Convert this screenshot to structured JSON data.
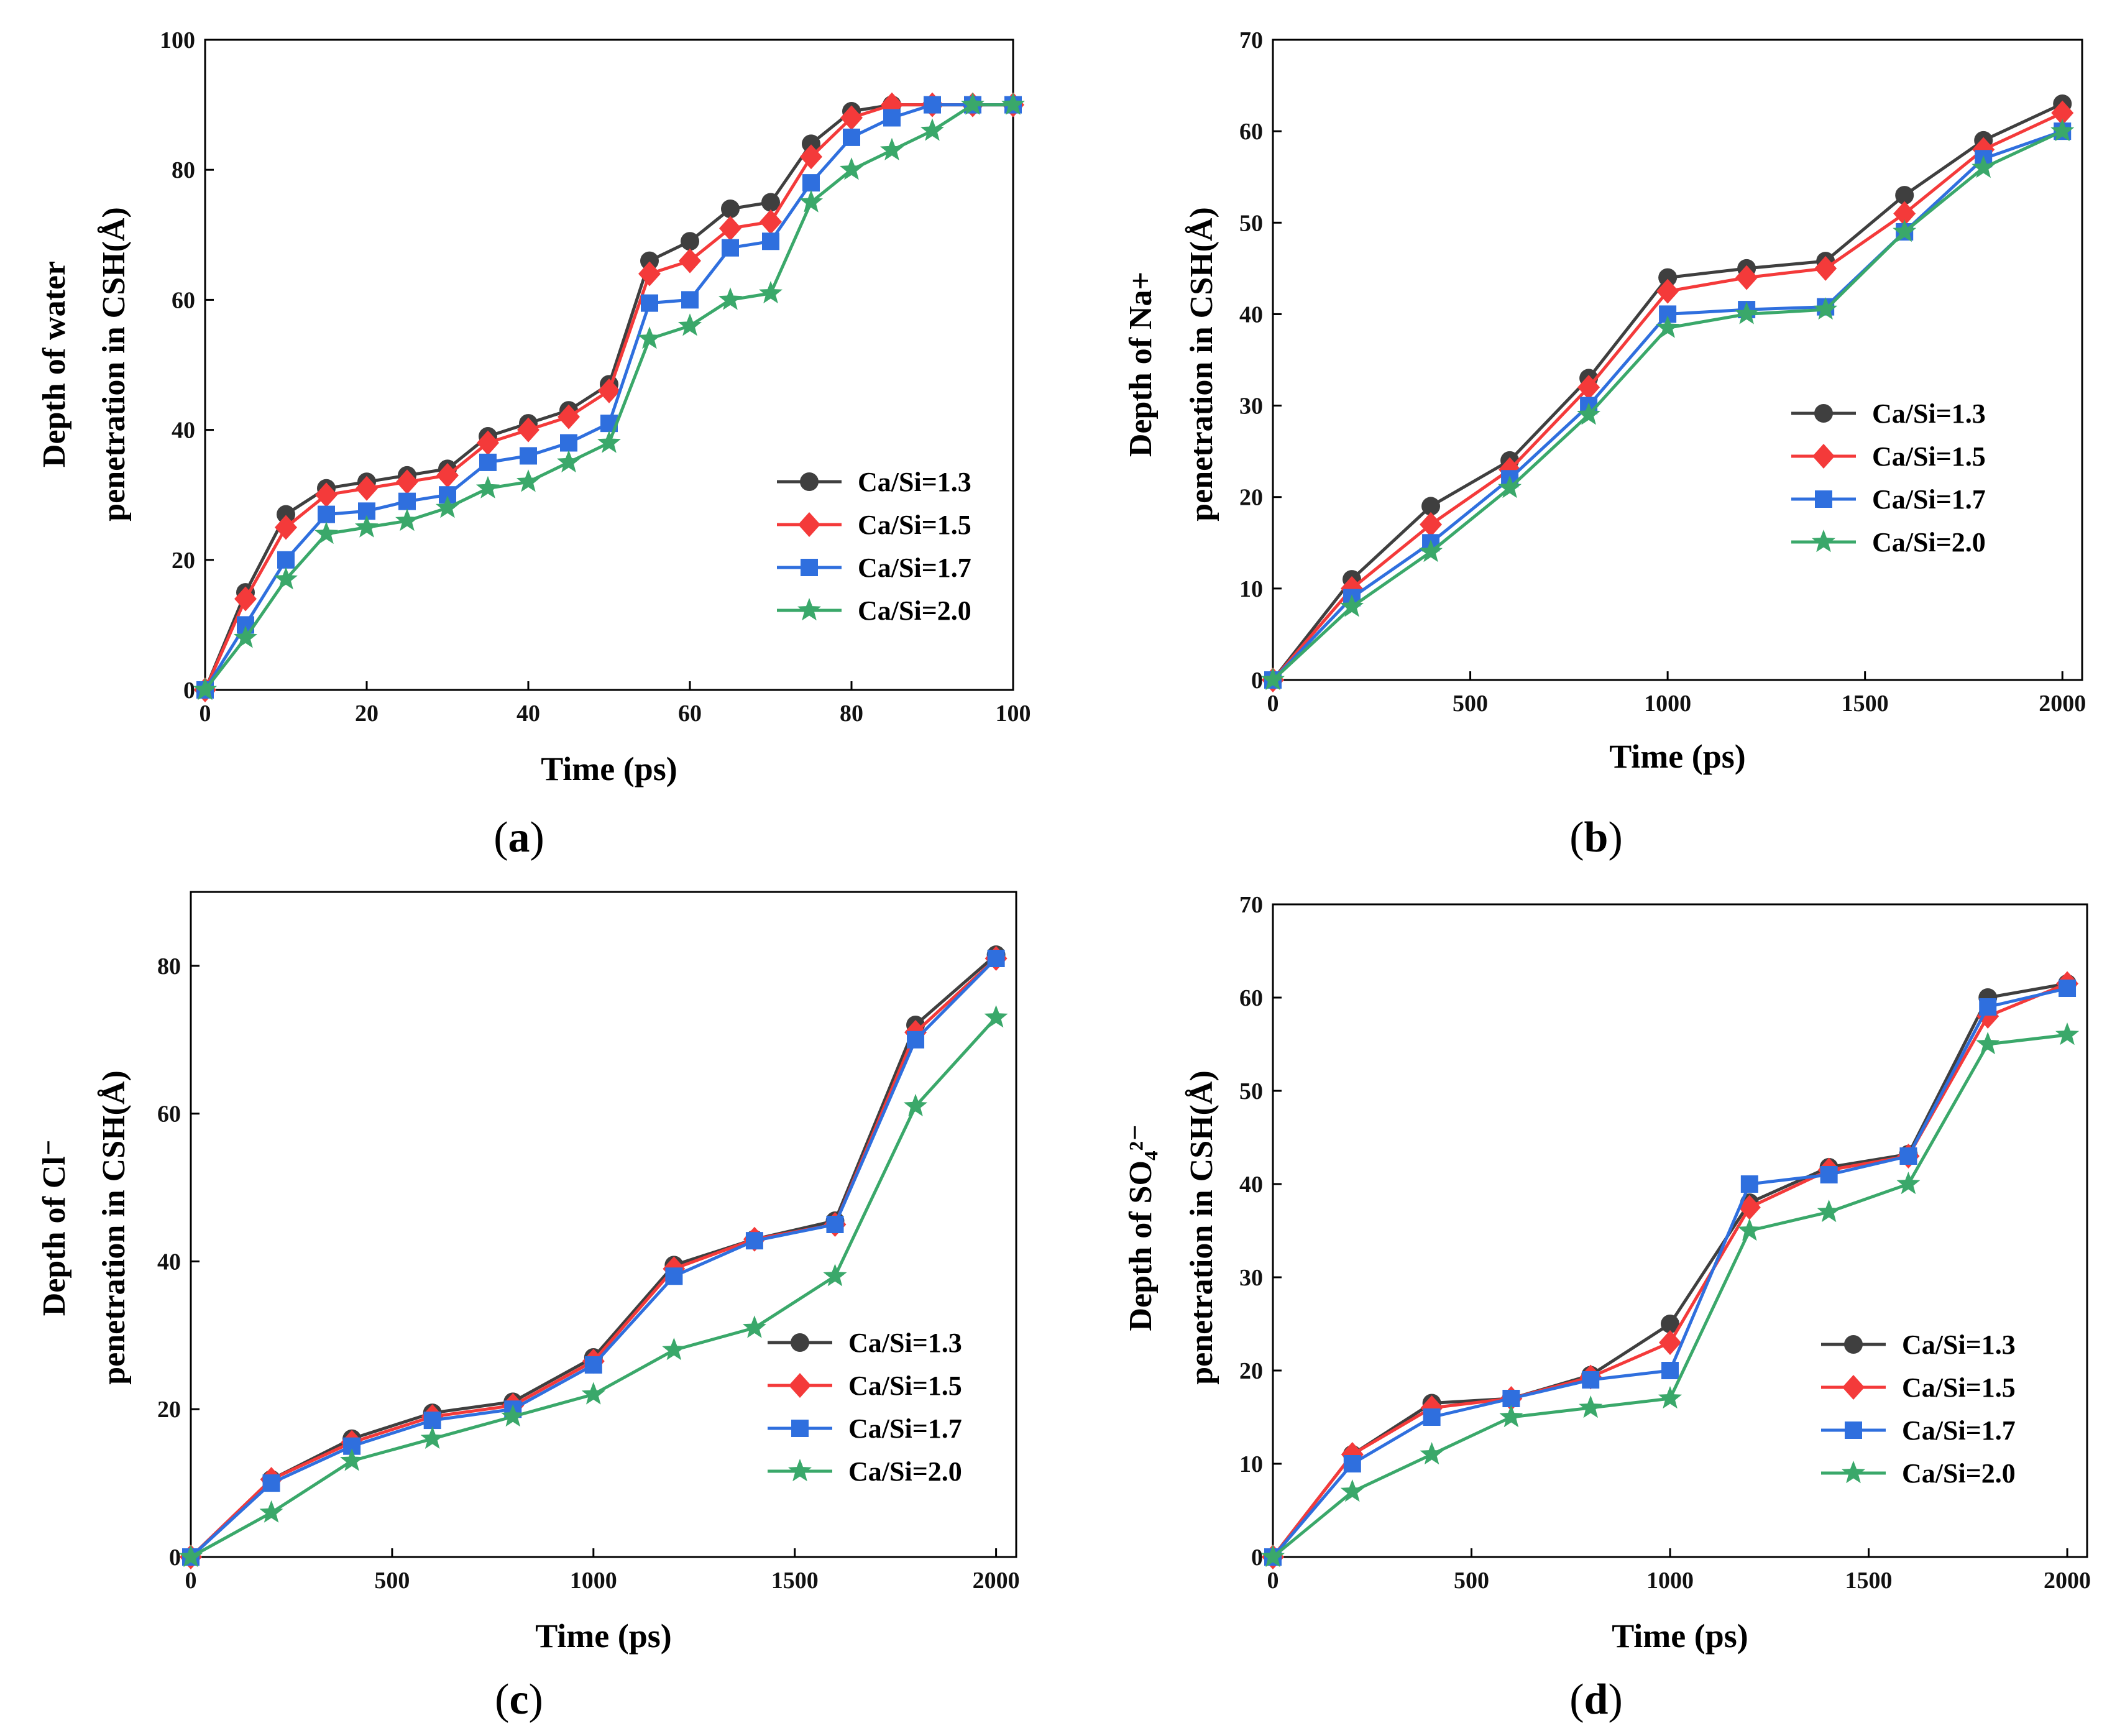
{
  "figure": {
    "series_colors": [
      "#3f3f3f",
      "#f43a3a",
      "#2f6fde",
      "#3aa86a"
    ]
  },
  "chart_data": [
    {
      "id": "a",
      "panel_label": "a",
      "type": "line",
      "title": "",
      "xlabel": "Time (ps)",
      "ylabel_line1": "Depth of water",
      "ylabel_line2": "penetration in CSH(Å)",
      "xlim": [
        0,
        100
      ],
      "ylim": [
        0,
        100
      ],
      "xticks": [
        0,
        20,
        40,
        60,
        80,
        100
      ],
      "yticks": [
        0,
        20,
        40,
        60,
        80,
        100
      ],
      "legend_position": "lower-right",
      "x": [
        0,
        5,
        10,
        15,
        20,
        25,
        30,
        35,
        40,
        45,
        50,
        55,
        60,
        65,
        70,
        75,
        80,
        85,
        90,
        95,
        100
      ],
      "series": [
        {
          "name": "Ca/Si=1.3",
          "marker": "circle",
          "values": [
            0,
            15,
            27,
            31,
            32,
            33,
            34,
            39,
            41,
            43,
            47,
            66,
            69,
            74,
            75,
            84,
            89,
            90,
            90,
            90,
            90
          ]
        },
        {
          "name": "Ca/Si=1.5",
          "marker": "diamond",
          "values": [
            0,
            14,
            25,
            30,
            31,
            32,
            33,
            38,
            40,
            42,
            46,
            64,
            66,
            71,
            72,
            82,
            88,
            90,
            90,
            90,
            90
          ]
        },
        {
          "name": "Ca/Si=1.7",
          "marker": "square",
          "values": [
            0,
            10,
            20,
            27,
            27.5,
            29,
            30,
            35,
            36,
            38,
            41,
            59.5,
            60,
            68,
            69,
            78,
            85,
            88,
            90,
            90,
            90
          ]
        },
        {
          "name": "Ca/Si=2.0",
          "marker": "star",
          "values": [
            0,
            8,
            17,
            24,
            25,
            26,
            28,
            31,
            32,
            35,
            38,
            54,
            56,
            60,
            61,
            75,
            80,
            83,
            86,
            90,
            90
          ]
        }
      ]
    },
    {
      "id": "b",
      "panel_label": "b",
      "type": "line",
      "title": "",
      "xlabel": "Time (ps)",
      "ylabel_line1": "Depth of Na+",
      "ylabel_line2": "penetration in CSH(Å)",
      "xlim": [
        0,
        2050
      ],
      "ylim": [
        0,
        70
      ],
      "xticks": [
        0,
        500,
        1000,
        1500,
        2000
      ],
      "yticks": [
        0,
        10,
        20,
        30,
        40,
        50,
        60,
        70
      ],
      "legend_position": "center-right",
      "x": [
        0,
        200,
        400,
        600,
        800,
        1000,
        1200,
        1400,
        1600,
        1800,
        2000
      ],
      "series": [
        {
          "name": "Ca/Si=1.3",
          "marker": "circle",
          "values": [
            0,
            11,
            19,
            24,
            33,
            44,
            45,
            45.8,
            53,
            59,
            63
          ]
        },
        {
          "name": "Ca/Si=1.5",
          "marker": "diamond",
          "values": [
            0,
            10,
            17,
            23,
            32,
            42.5,
            44,
            45,
            51,
            58,
            62
          ]
        },
        {
          "name": "Ca/Si=1.7",
          "marker": "square",
          "values": [
            0,
            9,
            15,
            22,
            30,
            40,
            40.5,
            40.8,
            49,
            57,
            60
          ]
        },
        {
          "name": "Ca/Si=2.0",
          "marker": "star",
          "values": [
            0,
            8,
            14,
            21,
            29,
            38.5,
            40,
            40.5,
            49,
            56,
            60
          ]
        }
      ]
    },
    {
      "id": "c",
      "panel_label": "c",
      "type": "line",
      "title": "",
      "xlabel": "Time (ps)",
      "ylabel_line1": "Depth of Cl⁻",
      "ylabel_line2": "penetration in CSH(Å)",
      "xlim": [
        0,
        2050
      ],
      "ylim": [
        0,
        90
      ],
      "xticks": [
        0,
        500,
        1000,
        1500,
        2000
      ],
      "yticks": [
        0,
        20,
        40,
        60,
        80
      ],
      "legend_position": "lower-right",
      "x": [
        0,
        200,
        400,
        600,
        800,
        1000,
        1200,
        1400,
        1600,
        1800,
        2000
      ],
      "series": [
        {
          "name": "Ca/Si=1.3",
          "marker": "circle",
          "values": [
            0,
            10.5,
            16,
            19.5,
            21,
            27,
            39.5,
            43,
            45.5,
            72,
            81.5
          ]
        },
        {
          "name": "Ca/Si=1.5",
          "marker": "diamond",
          "values": [
            0,
            10.5,
            15.5,
            19,
            20.5,
            26.5,
            39,
            43,
            45,
            71,
            81
          ]
        },
        {
          "name": "Ca/Si=1.7",
          "marker": "square",
          "values": [
            0,
            10,
            15,
            18.5,
            20,
            26,
            38,
            42.8,
            45,
            70,
            81
          ]
        },
        {
          "name": "Ca/Si=2.0",
          "marker": "star",
          "values": [
            0,
            6,
            13,
            16,
            19,
            22,
            28,
            31,
            38,
            61,
            73
          ]
        }
      ]
    },
    {
      "id": "d",
      "panel_label": "d",
      "type": "line",
      "title": "",
      "xlabel": "Time (ps)",
      "ylabel_line1": "Depth of SO₄²⁻",
      "ylabel_line2": "penetration in CSH(Å)",
      "xlim": [
        0,
        2050
      ],
      "ylim": [
        0,
        70
      ],
      "xticks": [
        0,
        500,
        1000,
        1500,
        2000
      ],
      "yticks": [
        0,
        10,
        20,
        30,
        40,
        50,
        60,
        70
      ],
      "legend_position": "lower-right",
      "x": [
        0,
        200,
        400,
        600,
        800,
        1000,
        1200,
        1400,
        1600,
        1800,
        2000
      ],
      "series": [
        {
          "name": "Ca/Si=1.3",
          "marker": "circle",
          "values": [
            0,
            11,
            16.5,
            17,
            19.5,
            25,
            38,
            41.8,
            43.2,
            60,
            61.5
          ]
        },
        {
          "name": "Ca/Si=1.5",
          "marker": "diamond",
          "values": [
            0,
            11,
            16,
            17,
            19.3,
            23,
            37.5,
            41.5,
            43,
            58,
            61.5
          ]
        },
        {
          "name": "Ca/Si=1.7",
          "marker": "square",
          "values": [
            0,
            10,
            15,
            17,
            19,
            20,
            40,
            41,
            43,
            59,
            61
          ]
        },
        {
          "name": "Ca/Si=2.0",
          "marker": "star",
          "values": [
            0,
            7,
            11,
            15,
            16,
            17,
            35,
            37,
            40,
            55,
            56
          ]
        }
      ]
    }
  ]
}
